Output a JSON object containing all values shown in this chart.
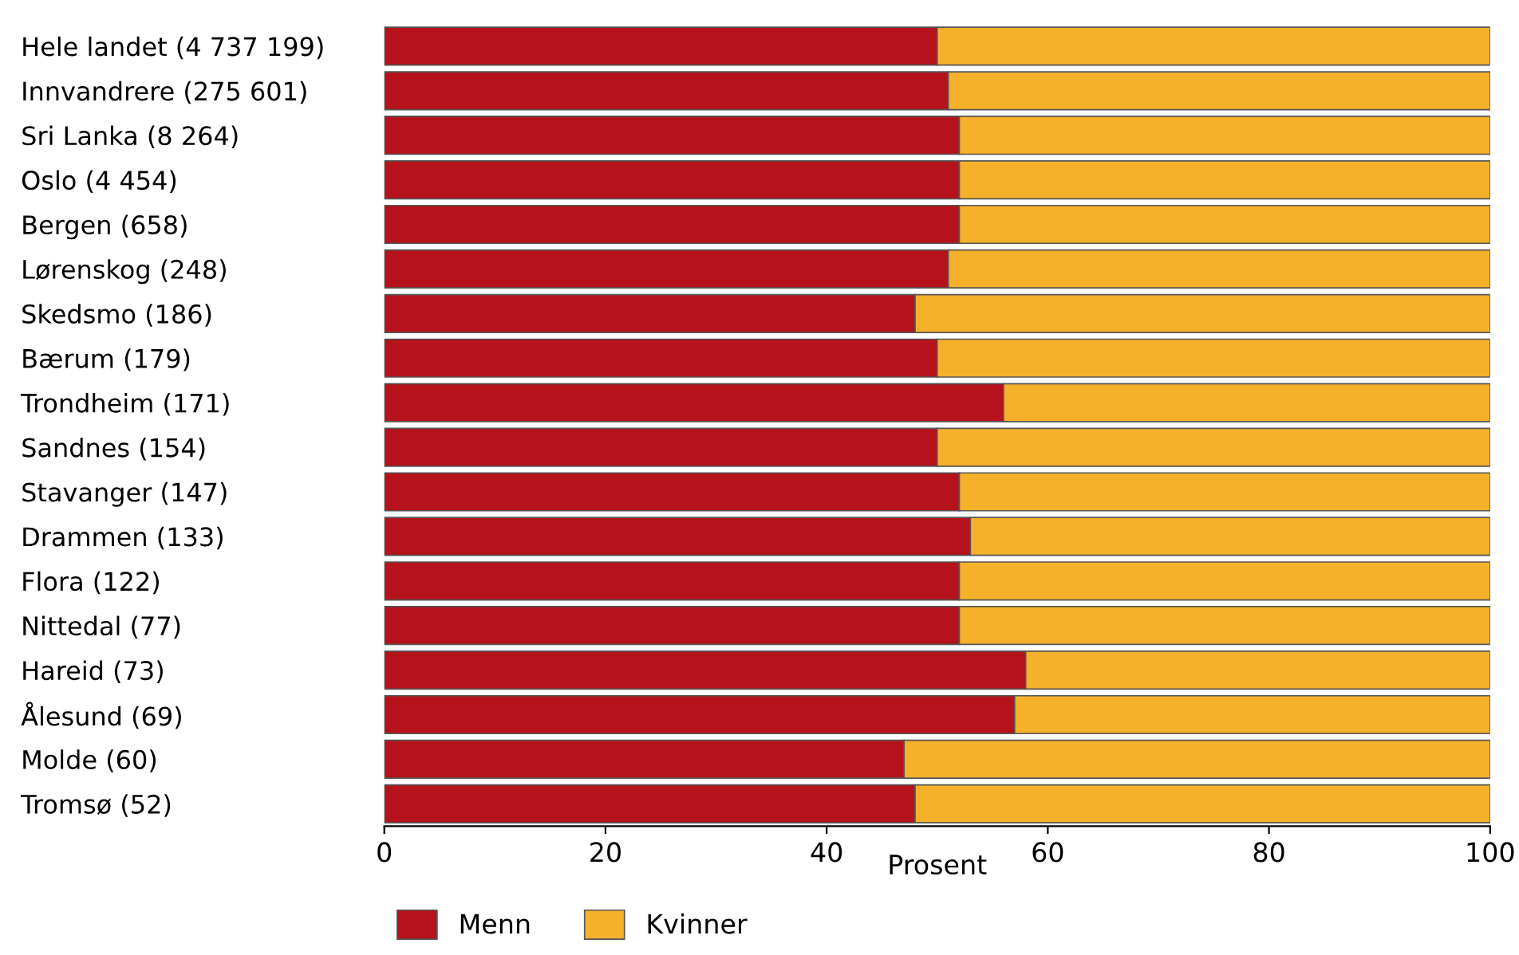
{
  "chart_data": {
    "type": "bar",
    "orientation": "horizontal",
    "stacked": true,
    "xlabel": "Prosent",
    "categories": [
      "Hele landet (4 737 199)",
      "Innvandrere (275 601)",
      "Sri Lanka (8 264)",
      "Oslo (4 454)",
      "Bergen (658)",
      "Lørenskog (248)",
      "Skedsmo (186)",
      "Bærum (179)",
      "Trondheim (171)",
      "Sandnes (154)",
      "Stavanger (147)",
      "Drammen (133)",
      "Flora (122)",
      "Nittedal (77)",
      "Hareid (73)",
      "Ålesund (69)",
      "Molde (60)",
      "Tromsø (52)"
    ],
    "series": [
      {
        "name": "Menn",
        "color": "#b5121b",
        "values": [
          50,
          51,
          52,
          52,
          52,
          51,
          48,
          50,
          56,
          50,
          52,
          53,
          52,
          52,
          58,
          57,
          47,
          48
        ]
      },
      {
        "name": "Kvinner",
        "color": "#f5b12a",
        "values": [
          50,
          49,
          48,
          48,
          48,
          49,
          52,
          50,
          44,
          50,
          48,
          47,
          48,
          48,
          42,
          43,
          53,
          52
        ]
      }
    ],
    "xlim": [
      0,
      100
    ],
    "xticks": [
      0,
      20,
      40,
      60,
      80,
      100
    ],
    "grid": false,
    "legend": "bottom left"
  }
}
